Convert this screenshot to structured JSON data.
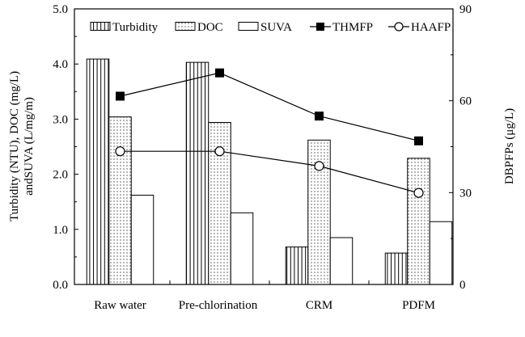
{
  "chart_data": {
    "type": "bar",
    "categories": [
      "Raw water",
      "Pre-chlorination",
      "CRM",
      "PDFM"
    ],
    "series": [
      {
        "name": "Turbidity",
        "kind": "bar",
        "axis": "left",
        "pattern": "vertical-lines",
        "values": [
          4.09,
          4.03,
          0.68,
          0.57
        ]
      },
      {
        "name": "DOC",
        "kind": "bar",
        "axis": "left",
        "pattern": "dots",
        "values": [
          3.04,
          2.94,
          2.62,
          2.29
        ]
      },
      {
        "name": "SUVA",
        "kind": "bar",
        "axis": "left",
        "pattern": "empty",
        "values": [
          1.62,
          1.3,
          0.85,
          1.14
        ]
      },
      {
        "name": "THMFP",
        "kind": "line",
        "axis": "right",
        "marker": "filled-square",
        "values": [
          61.5,
          69.1,
          55.0,
          46.9
        ]
      },
      {
        "name": "HAAFP",
        "kind": "line",
        "axis": "right",
        "marker": "open-circle",
        "values": [
          43.5,
          43.5,
          38.7,
          29.9
        ]
      }
    ],
    "ylabel_left_line1": "Turbidity (NTU), DOC (mg/L)",
    "ylabel_left_line2": "andSUVA (L/mg/m)",
    "ylabel_right": "DBPFPs (μg/L)",
    "ylim_left": [
      0,
      5
    ],
    "ylim_right": [
      0,
      90
    ],
    "yticks_left": [
      "0.0",
      "1.0",
      "2.0",
      "3.0",
      "4.0",
      "5.0"
    ],
    "yticks_right": [
      "0",
      "30",
      "60",
      "90"
    ],
    "legend_position": "top",
    "grid": false
  },
  "colors": {
    "ink": "#000000",
    "background": "#ffffff"
  }
}
